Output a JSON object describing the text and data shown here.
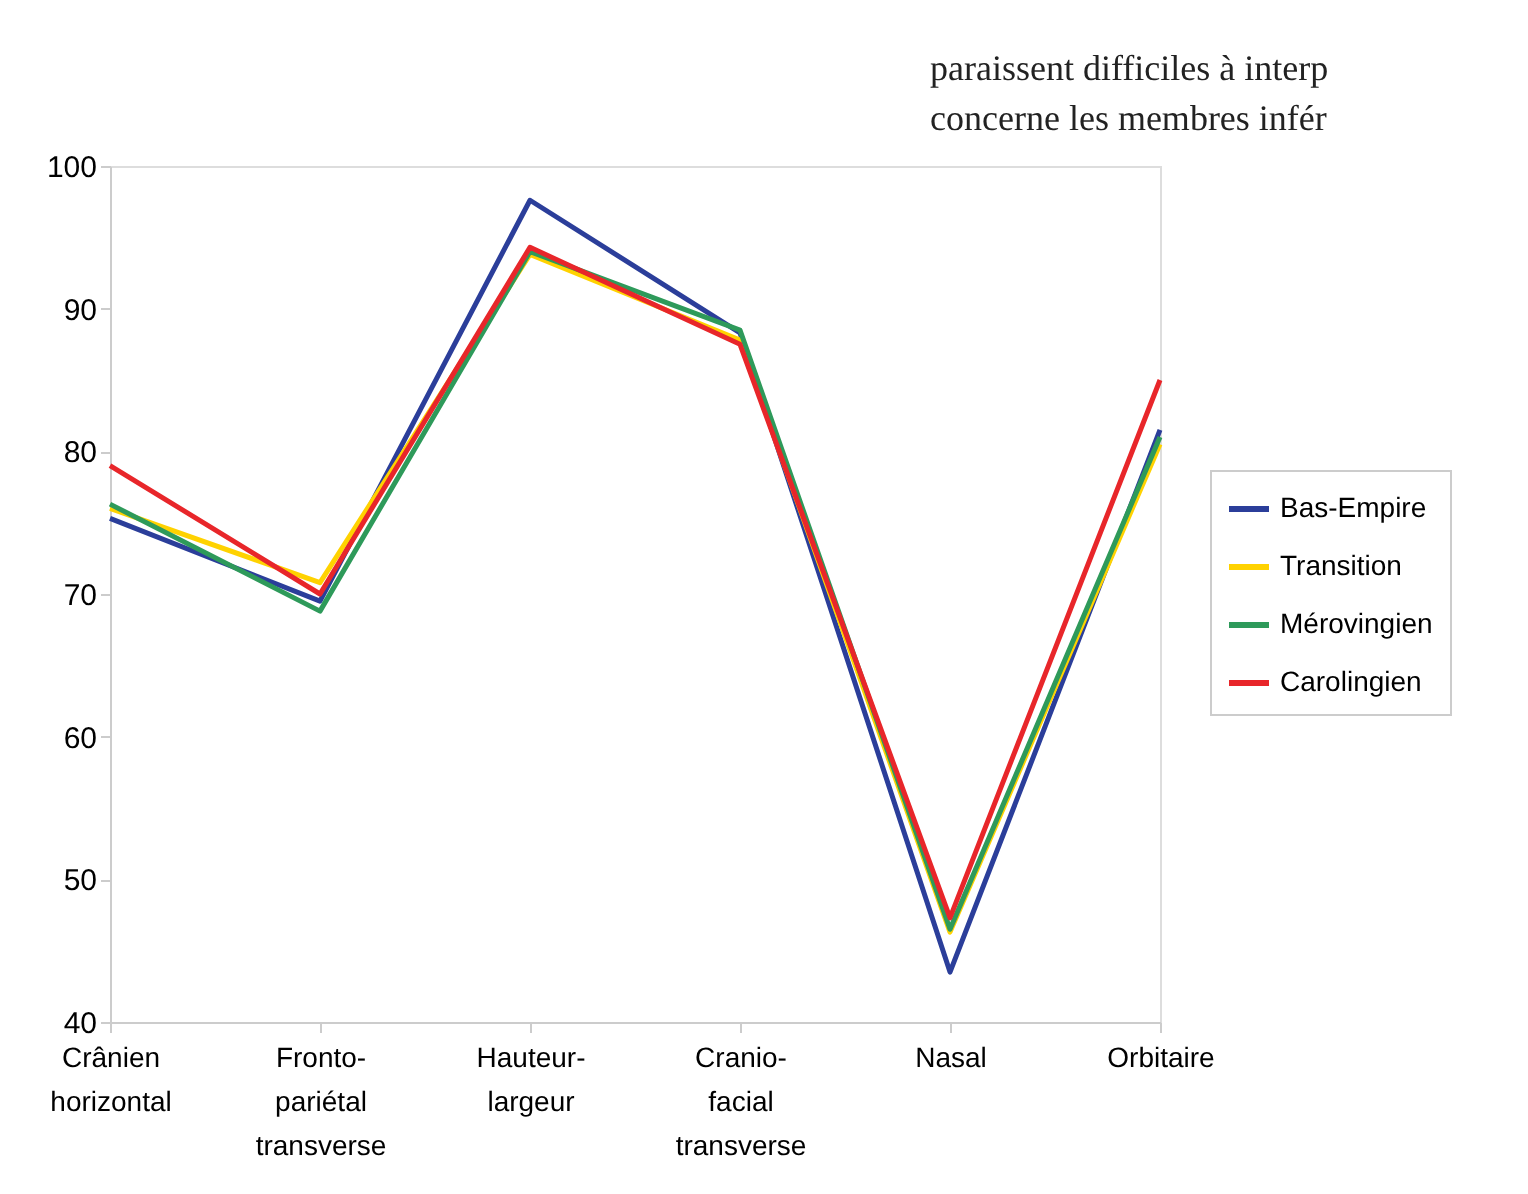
{
  "chart_data": {
    "type": "line",
    "categories": [
      "Crânien\nhorizontal",
      "Fronto-\npariétal\ntransverse",
      "Hauteur-\nlargeur",
      "Cranio-\nfacial\ntransverse",
      "Nasal",
      "Orbitaire"
    ],
    "series": [
      {
        "name": "Bas-Empire",
        "color": "#2b3e9a",
        "values": [
          75.3,
          69.5,
          97.6,
          88.3,
          43.5,
          81.5
        ]
      },
      {
        "name": "Transition",
        "color": "#ffd200",
        "values": [
          76.0,
          70.8,
          93.8,
          87.8,
          46.3,
          80.5
        ]
      },
      {
        "name": "Mérovingien",
        "color": "#2e9a5a",
        "values": [
          76.3,
          68.8,
          94.0,
          88.5,
          46.5,
          81.0
        ]
      },
      {
        "name": "Carolingien",
        "color": "#e8262a",
        "values": [
          79.0,
          70.0,
          94.3,
          87.5,
          47.3,
          85.0
        ]
      }
    ],
    "ylim": [
      40,
      100
    ],
    "yticks": [
      40,
      50,
      60,
      70,
      80,
      90,
      100
    ],
    "grid": false,
    "legend": "right",
    "marker": "none",
    "line_style": "solid",
    "annotations": [
      "paraissent difficiles à interp",
      "concerne les membres infér"
    ]
  }
}
